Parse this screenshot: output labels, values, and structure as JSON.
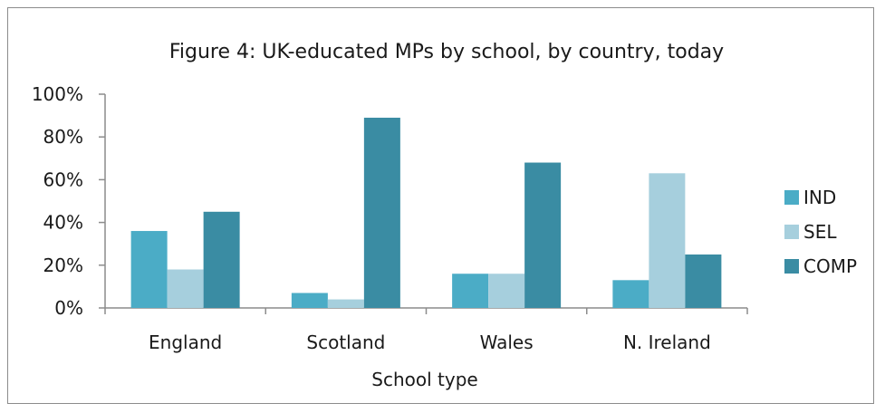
{
  "chart_data": {
    "type": "bar",
    "title": "Figure 4: UK-educated MPs by school, by country, today",
    "xlabel": "School type",
    "ylabel": "",
    "categories": [
      "England",
      "Scotland",
      "Wales",
      "N. Ireland"
    ],
    "series": [
      {
        "name": "IND",
        "values": [
          36,
          7,
          16,
          13
        ],
        "color": "#4bacc6"
      },
      {
        "name": "SEL",
        "values": [
          18,
          4,
          16,
          63
        ],
        "color": "#a6cfdd"
      },
      {
        "name": "COMP",
        "values": [
          45,
          89,
          68,
          25
        ],
        "color": "#3a8ca3"
      }
    ],
    "ylim": [
      0,
      100
    ],
    "yticks": [
      0,
      20,
      40,
      60,
      80,
      100
    ],
    "ytick_labels": [
      "0%",
      "20%",
      "40%",
      "60%",
      "80%",
      "100%"
    ],
    "grid": false,
    "legend_position": "right"
  }
}
